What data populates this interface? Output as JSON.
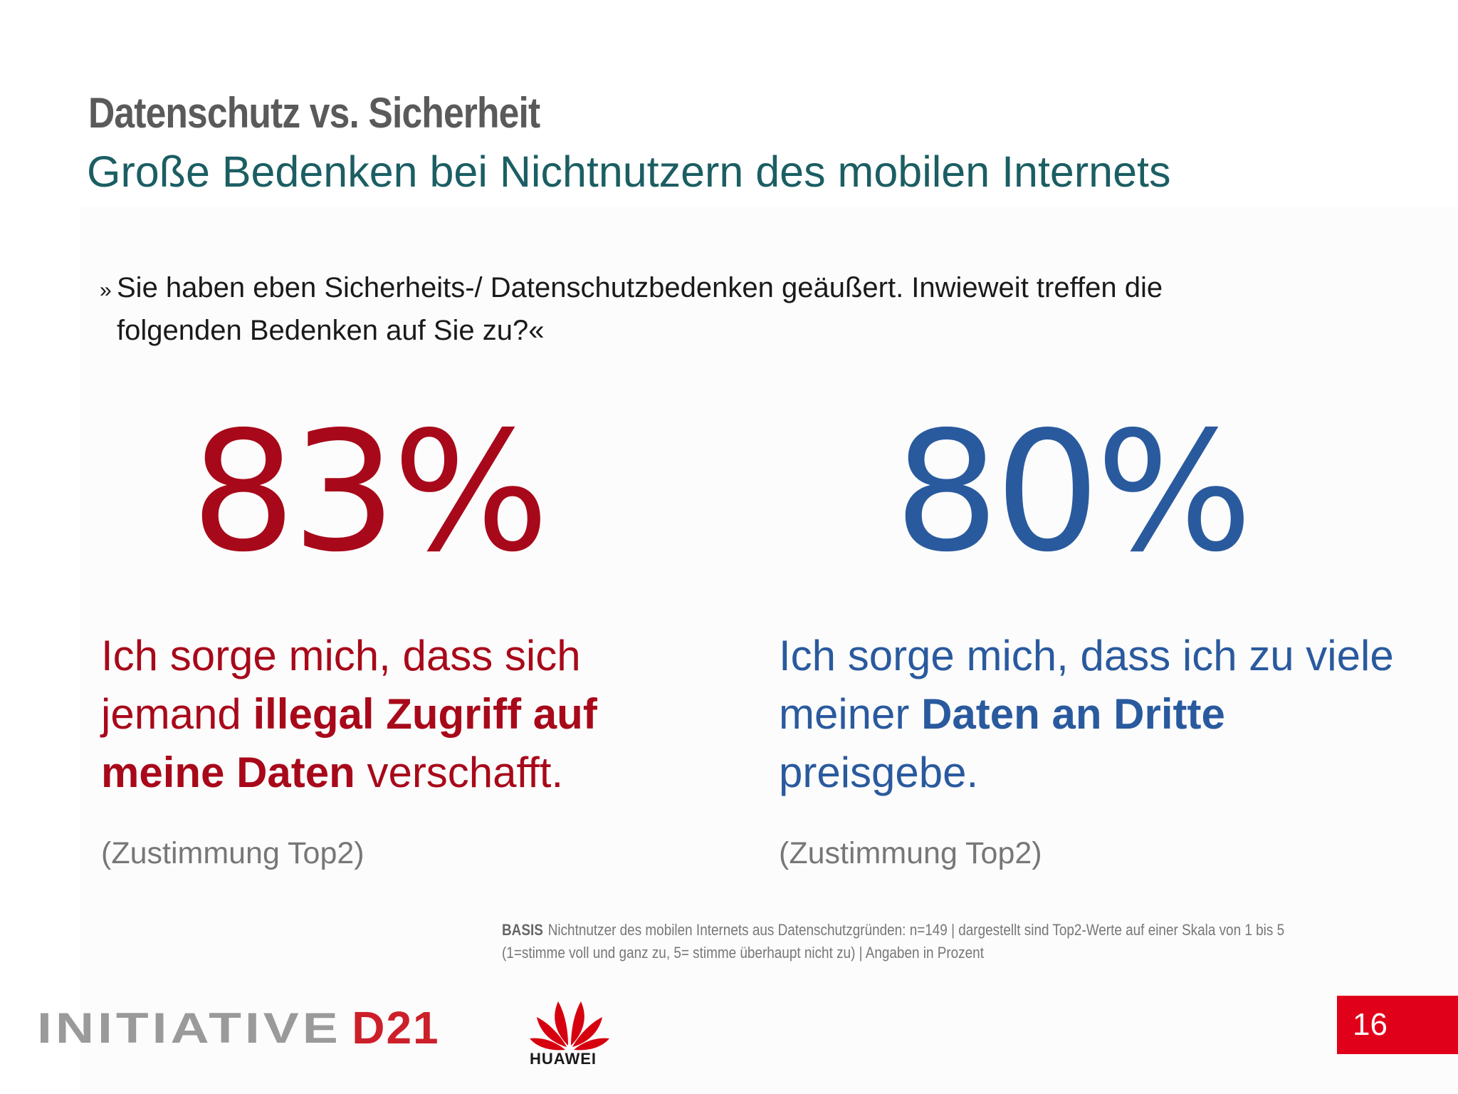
{
  "header": {
    "title": "Datenschutz vs. Sicherheit",
    "subtitle": "Große Bedenken bei Nichtnutzern des mobilen Internets"
  },
  "question": {
    "open_mark": "»",
    "line1": "Sie haben eben Sicherheits-/ Datenschutzbedenken geäußert. Inwieweit treffen die",
    "line2": "folgenden Bedenken auf Sie zu?«"
  },
  "left": {
    "stat": "83%",
    "text_pre": "Ich sorge mich, dass sich jemand ",
    "text_bold": "illegal Zugriff auf meine Daten",
    "text_post": " verschafft.",
    "note": "(Zustimmung Top2)",
    "color": "#a8091a"
  },
  "right": {
    "stat": "80%",
    "text_pre": "Ich sorge mich, dass ich zu viele meiner ",
    "text_bold": "Daten an Dritte",
    "text_post": " preisgebe.",
    "note": "(Zustimmung Top2)",
    "color": "#2a5a9e"
  },
  "basis": {
    "label": "BASIS",
    "line1": "Nichtnutzer des mobilen Internets aus Datenschutzgründen: n=149 | dargestellt sind Top2-Werte auf einer Skala von 1 bis 5",
    "line2": "(1=stimme voll und ganz zu, 5= stimme überhaupt nicht zu) | Angaben in Prozent"
  },
  "footer": {
    "logo1_part1": "INITIATIVE",
    "logo1_part2": "D21",
    "logo2_text": "HUAWEI",
    "page_number": "16"
  },
  "colors": {
    "title": "#5a5a5a",
    "subtitle": "#1b5e63",
    "badge": "#e1001a"
  }
}
